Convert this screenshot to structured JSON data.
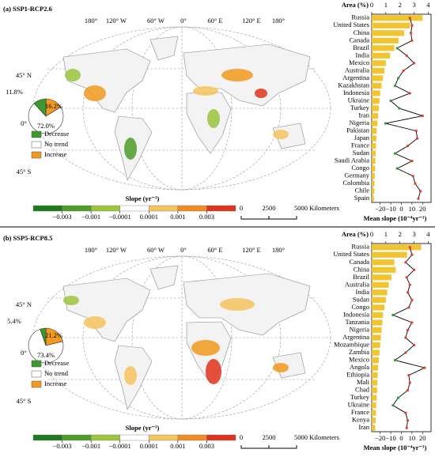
{
  "panels": [
    {
      "title": "(a) SSP1-RCP2.6",
      "map_labels": [
        "180°",
        "120° W",
        "60° W",
        "0°",
        "60° E",
        "120° E",
        "180°",
        "45° N",
        "0°",
        "45° S"
      ],
      "colorbar": {
        "title": "Slope (yr⁻¹)",
        "colors": [
          "#1f7a1f",
          "#4e9d2a",
          "#9cc53c",
          "#ffffff",
          "#f6c45e",
          "#f08c22",
          "#e0331c"
        ],
        "ticks": [
          {
            "value": -0.003,
            "label": "−0.003"
          },
          {
            "value": -0.001,
            "label": "−0.001"
          },
          {
            "value": -0.0001,
            "label": "−0.0001"
          },
          0.0001,
          0.001,
          0.003
        ]
      },
      "scale_labels": [
        "0",
        "2500",
        "5000 Kilometers"
      ]
    },
    {
      "title": "(b) SSP5-RCP8.5",
      "map_labels": [
        "180°",
        "120° W",
        "60° W",
        "0°",
        "60° E",
        "120° E",
        "180°",
        "45° N",
        "0°",
        "45° S"
      ],
      "colorbar": {
        "title": "Slope (yr⁻¹)",
        "colors": [
          "#1f7a1f",
          "#4e9d2a",
          "#9cc53c",
          "#ffffff",
          "#f6c45e",
          "#f08c22",
          "#e0331c"
        ],
        "ticks": [
          {
            "value": -0.003,
            "label": "−0.003"
          },
          {
            "value": -0.001,
            "label": "−0.001"
          },
          {
            "value": -0.0001,
            "label": "−0.0001"
          },
          0.0001,
          0.001,
          0.003
        ]
      },
      "scale_labels": [
        "0",
        "2500",
        "5000 Kilometers"
      ]
    }
  ],
  "chart_data": [
    {
      "type": "pie",
      "categories": [
        "Decrease",
        "No trend",
        "Increase"
      ],
      "values": [
        11.8,
        72.0,
        16.2
      ],
      "value_labels": [
        "11.8%",
        "72.0%",
        "16.2%"
      ],
      "colors": [
        "#3c9a2c",
        "#ffffff",
        "#f29a1e"
      ]
    },
    {
      "type": "bar-line",
      "x2_label": "Area (%)",
      "x_label": "Mean slope (10⁻⁴yr⁻¹)",
      "categories": [
        "Russia",
        "United States",
        "China",
        "Canada",
        "Brazil",
        "India",
        "Mexico",
        "Australia",
        "Argentina",
        "Kazakhstan",
        "Indonesia",
        "Ukraine",
        "Turkey",
        "Iran",
        "Nigeria",
        "Pakistan",
        "Japan",
        "France",
        "Sudan",
        "Saudi Arabia",
        "Congo",
        "Germany",
        "Colombia",
        "Chile",
        "Spain"
      ],
      "bars": {
        "values": [
          3.6,
          2.7,
          2.3,
          1.9,
          1.6,
          1.3,
          1.0,
          0.9,
          0.8,
          0.7,
          0.6,
          0.55,
          0.5,
          0.45,
          0.4,
          0.35,
          0.33,
          0.3,
          0.28,
          0.26,
          0.24,
          0.22,
          0.2,
          0.18,
          0.16
        ],
        "color": "#f2c530"
      },
      "line": {
        "values": [
          8,
          10,
          9,
          10,
          -4,
          5,
          12,
          2,
          -3,
          -6,
          8,
          -10,
          -2,
          20,
          -15,
          14,
          15,
          6,
          -6,
          10,
          -4,
          11,
          13,
          18,
          16
        ],
        "color": "#000000",
        "positive_color": "#e8392f",
        "negative_color": "#2f9a3a"
      },
      "x2lim": [
        0,
        4.2
      ],
      "x2ticks": [
        0,
        1,
        2,
        3,
        4
      ],
      "xlim": [
        -28,
        28
      ],
      "xticks": [
        {
          "value": -20,
          "label": "−20"
        },
        {
          "value": -10,
          "label": "−10"
        },
        0,
        10,
        20
      ]
    },
    {
      "type": "pie",
      "categories": [
        "Decrease",
        "No trend",
        "Increase"
      ],
      "values": [
        5.4,
        73.4,
        21.2
      ],
      "value_labels": [
        "5.4%",
        "73.4%",
        "21.2%"
      ],
      "colors": [
        "#3c9a2c",
        "#ffffff",
        "#f29a1e"
      ]
    },
    {
      "type": "bar-line",
      "x2_label": "Area (%)",
      "x_label": "Mean slope (10⁻⁴yr⁻¹)",
      "categories": [
        "Russia",
        "United States",
        "Canada",
        "China",
        "Brazil",
        "Australia",
        "India",
        "Sudan",
        "Congo",
        "Indonesia",
        "Tanzania",
        "Nigeria",
        "Argentina",
        "Mozambique",
        "Zambia",
        "Mexico",
        "Angola",
        "Ethiopia",
        "Mali",
        "Chad",
        "Turkey",
        "Ukraine",
        "France",
        "Kenya",
        "Iran"
      ],
      "bars": {
        "values": [
          3.5,
          2.5,
          1.6,
          1.7,
          1.4,
          1.2,
          1.1,
          1.0,
          0.9,
          0.8,
          0.75,
          0.7,
          0.65,
          0.6,
          0.55,
          0.5,
          0.45,
          0.42,
          0.4,
          0.38,
          0.35,
          0.32,
          0.3,
          0.28,
          0.25
        ],
        "color": "#f2c530"
      },
      "line": {
        "values": [
          8,
          10,
          4,
          12,
          5,
          8,
          6,
          10,
          7,
          -8,
          10,
          6,
          4,
          12,
          4,
          -6,
          22,
          7,
          8,
          6,
          -3,
          -8,
          4,
          6,
          5
        ],
        "color": "#000000",
        "positive_color": "#e8392f",
        "negative_color": "#2f9a3a"
      },
      "x2lim": [
        0,
        4.2
      ],
      "x2ticks": [
        0,
        1,
        2,
        3,
        4
      ],
      "xlim": [
        -28,
        28
      ],
      "xticks": [
        {
          "value": -20,
          "label": "−20"
        },
        {
          "value": -10,
          "label": "−10"
        },
        0,
        10,
        20
      ]
    }
  ]
}
